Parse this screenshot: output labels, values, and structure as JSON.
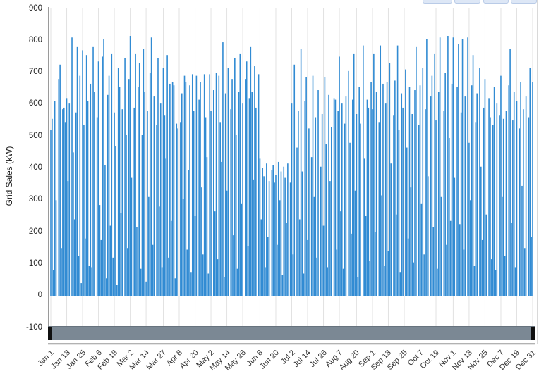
{
  "chart": {
    "ylabel": "Grid Sales (kW)",
    "colors": {
      "bar": "#318bd3",
      "gridline": "#e2e2e2",
      "axis_line": "#9a9a9a",
      "tick_text": "#333333",
      "scrollbar_track": "#7b8894",
      "scrollbar_grip": "#101010",
      "partial_button_fill": "#dde7f6",
      "partial_button_border": "#b9cbe7"
    }
  },
  "toolbar": {
    "partial_buttons_visible": 4
  },
  "scrollbar": {
    "orientation": "horizontal",
    "full_range_selected": true
  },
  "chart_data": {
    "type": "bar",
    "title": "",
    "xlabel": "",
    "ylabel": "Grid Sales (kW)",
    "ylim": [
      -100,
      900
    ],
    "y_ticks": [
      900,
      800,
      700,
      600,
      500,
      400,
      300,
      200,
      100,
      0,
      -100
    ],
    "grid": "vertical-gridlines-only",
    "legend": "none",
    "x_unit": "day of year (daily bars, Jan 1 - Dec 31)",
    "points": 365,
    "x_ticks": [
      {
        "label": "Jan 1",
        "day": 0
      },
      {
        "label": "Jan 13",
        "day": 12
      },
      {
        "label": "Jan 25",
        "day": 24
      },
      {
        "label": "Feb 6",
        "day": 36
      },
      {
        "label": "Feb 18",
        "day": 48
      },
      {
        "label": "Mar 2",
        "day": 60
      },
      {
        "label": "Mar 14",
        "day": 72
      },
      {
        "label": "Mar 27",
        "day": 85
      },
      {
        "label": "Apr 8",
        "day": 97
      },
      {
        "label": "Apr 20",
        "day": 109
      },
      {
        "label": "May 2",
        "day": 121
      },
      {
        "label": "May 14",
        "day": 133
      },
      {
        "label": "May 26",
        "day": 145
      },
      {
        "label": "Jun 8",
        "day": 158
      },
      {
        "label": "Jun 20",
        "day": 170
      },
      {
        "label": "Jul 2",
        "day": 182
      },
      {
        "label": "Jul 14",
        "day": 194
      },
      {
        "label": "Jul 26",
        "day": 206
      },
      {
        "label": "Aug 7",
        "day": 218
      },
      {
        "label": "Aug 20",
        "day": 231
      },
      {
        "label": "Sep 1",
        "day": 243
      },
      {
        "label": "Sep 13",
        "day": 255
      },
      {
        "label": "Sep 25",
        "day": 267
      },
      {
        "label": "Oct 7",
        "day": 279
      },
      {
        "label": "Oct 19",
        "day": 291
      },
      {
        "label": "Nov 1",
        "day": 304
      },
      {
        "label": "Nov 13",
        "day": 316
      },
      {
        "label": "Nov 25",
        "day": 328
      },
      {
        "label": "Dec 7",
        "day": 340
      },
      {
        "label": "Dec 19",
        "day": 352
      },
      {
        "label": "Dec 31",
        "day": 364
      }
    ],
    "series": [
      {
        "name": "Grid Sales",
        "unit": "kW",
        "values": [
          520,
          555,
          80,
          610,
          300,
          0,
          680,
          725,
          150,
          585,
          590,
          545,
          620,
          360,
          605,
          0,
          810,
          450,
          240,
          575,
          780,
          125,
          690,
          40,
          770,
          535,
          180,
          755,
          610,
          95,
          665,
          90,
          780,
          640,
          0,
          560,
          735,
          285,
          175,
          750,
          805,
          410,
          55,
          630,
          690,
          220,
          760,
          120,
          575,
          470,
          35,
          715,
          655,
          260,
          585,
          0,
          745,
          505,
          150,
          680,
          815,
          370,
          0,
          590,
          760,
          215,
          655,
          730,
          85,
          505,
          775,
          640,
          45,
          580,
          310,
          700,
          810,
          160,
          625,
          0,
          535,
          745,
          280,
          605,
          90,
          715,
          565,
          430,
          755,
          120,
          665,
          235,
          670,
          660,
          55,
          540,
          525,
          0,
          545,
          635,
          305,
          690,
          670,
          145,
          395,
          660,
          75,
          695,
          580,
          250,
          690,
          0,
          615,
          670,
          340,
          130,
          695,
          560,
          435,
          70,
          695,
          580,
          0,
          645,
          265,
          700,
          115,
          690,
          545,
          420,
          795,
          60,
          635,
          330,
          715,
          0,
          585,
          680,
          190,
          745,
          505,
          85,
          640,
          760,
          290,
          605,
          0,
          680,
          735,
          155,
          620,
          780,
          640,
          365,
          720,
          590,
          0,
          695,
          430,
          240,
          400,
          375,
          90,
          415,
          185,
          360,
          0,
          395,
          410,
          355,
          380,
          160,
          420,
          300,
          390,
          65,
          405,
          370,
          230,
          415,
          0,
          355,
          605,
          130,
          725,
          0,
          465,
          580,
          240,
          775,
          390,
          70,
          610,
          685,
          175,
          525,
          0,
          435,
          690,
          310,
          560,
          120,
          645,
          0,
          405,
          570,
          220,
          685,
          475,
          90,
          630,
          360,
          530,
          0,
          620,
          615,
          145,
          580,
          750,
          265,
          605,
          85,
          540,
          625,
          0,
          705,
          480,
          195,
          615,
          760,
          330,
          570,
          60,
          655,
          540,
          0,
          785,
          430,
          250,
          615,
          590,
          110,
          670,
          585,
          760,
          200,
          640,
          0,
          545,
          785,
          315,
          665,
          95,
          605,
          670,
          140,
          730,
          415,
          0,
          565,
          675,
          255,
          785,
          520,
          75,
          635,
          590,
          0,
          710,
          465,
          180,
          655,
          340,
          570,
          105,
          645,
          780,
          0,
          535,
          660,
          290,
          715,
          130,
          585,
          805,
          375,
          0,
          625,
          690,
          215,
          760,
          550,
          85,
          640,
          810,
          310,
          0,
          580,
          700,
          160,
          815,
          495,
          235,
          665,
          810,
          370,
          0,
          655,
          790,
          225,
          575,
          805,
          145,
          625,
          0,
          810,
          480,
          300,
          660,
          755,
          95,
          545,
          635,
          0,
          715,
          405,
          175,
          590,
          680,
          255,
          0,
          620,
          560,
          115,
          535,
          655,
          80,
          605,
          0,
          565,
          690,
          310,
          555,
          125,
          580,
          0,
          660,
          775,
          230,
          550,
          640,
          90,
          610,
          0,
          525,
          670,
          345,
          585,
          150,
          625,
          0,
          560,
          715,
          185,
          670
        ]
      }
    ]
  }
}
